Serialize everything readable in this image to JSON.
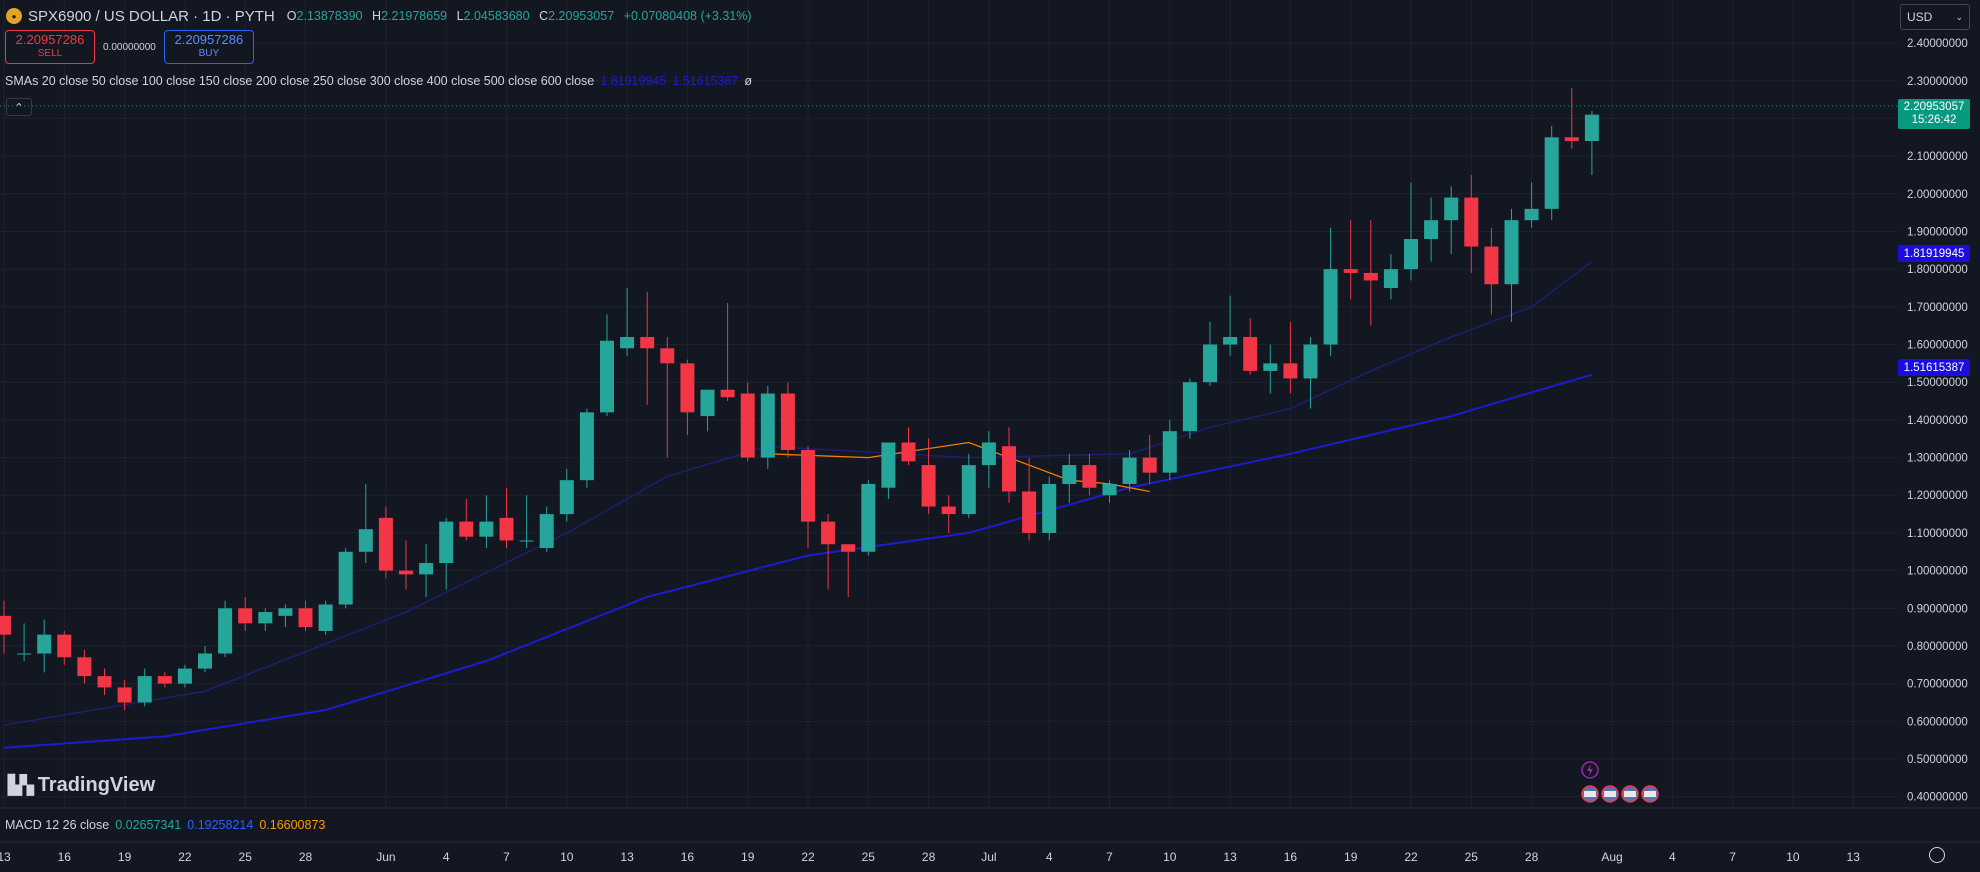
{
  "header": {
    "symbol_title": "SPX6900 / US DOLLAR · 1D · PYTH",
    "o_label": "O",
    "o_value": "2.13878390",
    "h_label": "H",
    "h_value": "2.21978659",
    "l_label": "L",
    "l_value": "2.04583680",
    "c_label": "C",
    "c_value": "2.20953057",
    "change": "+0.07080408",
    "change_pct": "(+3.31%)"
  },
  "trade": {
    "sell_price": "2.20957286",
    "sell_label": "SELL",
    "spread": "0.00000000",
    "buy_price": "2.20957286",
    "buy_label": "BUY"
  },
  "indicators": {
    "sma_label": "SMAs 20 close 50 close 100 close 150 close 200 close 250 close 300 close 400 close 500 close 600 close",
    "sma_value_1": "1.81919945",
    "sma_value_2": "1.51615387",
    "sma_suffix": "ø",
    "macd_label": "MACD 12 26 close",
    "macd_value": "0.02657341",
    "signal_value": "0.19258214",
    "hist_value": "0.16600873"
  },
  "currency": {
    "label": "USD",
    "icon": "chevron-down-icon"
  },
  "price_tags": {
    "current_price": "2.20953057",
    "countdown": "15:26:42",
    "sma1": "1.81919945",
    "sma2": "1.51615387"
  },
  "logo": {
    "text": "TradingView"
  },
  "colors": {
    "background": "#131722",
    "up": "#26a69a",
    "down": "#f23645",
    "sma_fast": "#1f1f7a",
    "sma_slow": "#1c1ccf",
    "sma_orange": "#f57c00",
    "grid": "#1e222d"
  },
  "chart_data": {
    "type": "candlestick",
    "y_ticks": [
      "2.40000000",
      "2.30000000",
      "2.20000000",
      "2.10000000",
      "2.00000000",
      "1.90000000",
      "1.80000000",
      "1.70000000",
      "1.60000000",
      "1.50000000",
      "1.40000000",
      "1.30000000",
      "1.20000000",
      "1.10000000",
      "1.00000000",
      "0.90000000",
      "0.80000000",
      "0.70000000",
      "0.60000000",
      "0.50000000",
      "0.40000000"
    ],
    "ylim": [
      0.37,
      2.44
    ],
    "x_ticks": [
      {
        "day": 0,
        "label": "13"
      },
      {
        "day": 3,
        "label": "16"
      },
      {
        "day": 6,
        "label": "19"
      },
      {
        "day": 9,
        "label": "22"
      },
      {
        "day": 12,
        "label": "25"
      },
      {
        "day": 15,
        "label": "28"
      },
      {
        "day": 19,
        "label": "Jun"
      },
      {
        "day": 22,
        "label": "4"
      },
      {
        "day": 25,
        "label": "7"
      },
      {
        "day": 28,
        "label": "10"
      },
      {
        "day": 31,
        "label": "13"
      },
      {
        "day": 34,
        "label": "16"
      },
      {
        "day": 37,
        "label": "19"
      },
      {
        "day": 40,
        "label": "22"
      },
      {
        "day": 43,
        "label": "25"
      },
      {
        "day": 46,
        "label": "28"
      },
      {
        "day": 49,
        "label": "Jul"
      },
      {
        "day": 52,
        "label": "4"
      },
      {
        "day": 55,
        "label": "7"
      },
      {
        "day": 58,
        "label": "10"
      },
      {
        "day": 61,
        "label": "13"
      },
      {
        "day": 64,
        "label": "16"
      },
      {
        "day": 67,
        "label": "19"
      },
      {
        "day": 70,
        "label": "22"
      },
      {
        "day": 73,
        "label": "25"
      },
      {
        "day": 76,
        "label": "28"
      },
      {
        "day": 80,
        "label": "Aug"
      },
      {
        "day": 83,
        "label": "4"
      },
      {
        "day": 86,
        "label": "7"
      },
      {
        "day": 89,
        "label": "10"
      },
      {
        "day": 92,
        "label": "13"
      }
    ],
    "candles": [
      [
        0.88,
        0.92,
        0.78,
        0.83
      ],
      [
        0.78,
        0.86,
        0.76,
        0.78
      ],
      [
        0.78,
        0.87,
        0.73,
        0.83
      ],
      [
        0.83,
        0.84,
        0.75,
        0.77
      ],
      [
        0.77,
        0.79,
        0.7,
        0.72
      ],
      [
        0.72,
        0.74,
        0.67,
        0.69
      ],
      [
        0.69,
        0.71,
        0.63,
        0.65
      ],
      [
        0.65,
        0.74,
        0.64,
        0.72
      ],
      [
        0.72,
        0.73,
        0.69,
        0.7
      ],
      [
        0.7,
        0.75,
        0.69,
        0.74
      ],
      [
        0.74,
        0.8,
        0.73,
        0.78
      ],
      [
        0.78,
        0.92,
        0.77,
        0.9
      ],
      [
        0.9,
        0.93,
        0.84,
        0.86
      ],
      [
        0.86,
        0.9,
        0.84,
        0.89
      ],
      [
        0.88,
        0.91,
        0.85,
        0.9
      ],
      [
        0.9,
        0.92,
        0.84,
        0.85
      ],
      [
        0.84,
        0.92,
        0.83,
        0.91
      ],
      [
        0.91,
        1.06,
        0.9,
        1.05
      ],
      [
        1.05,
        1.23,
        1.02,
        1.11
      ],
      [
        1.14,
        1.17,
        0.98,
        1.0
      ],
      [
        1.0,
        1.08,
        0.95,
        0.99
      ],
      [
        0.99,
        1.07,
        0.93,
        1.02
      ],
      [
        1.02,
        1.14,
        0.95,
        1.13
      ],
      [
        1.13,
        1.19,
        1.08,
        1.09
      ],
      [
        1.09,
        1.2,
        1.06,
        1.13
      ],
      [
        1.14,
        1.22,
        1.06,
        1.08
      ],
      [
        1.08,
        1.2,
        1.06,
        1.08
      ],
      [
        1.06,
        1.17,
        1.05,
        1.15
      ],
      [
        1.15,
        1.27,
        1.13,
        1.24
      ],
      [
        1.24,
        1.43,
        1.22,
        1.42
      ],
      [
        1.42,
        1.68,
        1.41,
        1.61
      ],
      [
        1.59,
        1.75,
        1.57,
        1.62
      ],
      [
        1.62,
        1.74,
        1.44,
        1.59
      ],
      [
        1.59,
        1.62,
        1.3,
        1.55
      ],
      [
        1.55,
        1.56,
        1.36,
        1.42
      ],
      [
        1.41,
        1.48,
        1.37,
        1.48
      ],
      [
        1.48,
        1.71,
        1.45,
        1.46
      ],
      [
        1.47,
        1.5,
        1.29,
        1.3
      ],
      [
        1.3,
        1.49,
        1.27,
        1.47
      ],
      [
        1.47,
        1.5,
        1.3,
        1.32
      ],
      [
        1.32,
        1.33,
        1.06,
        1.13
      ],
      [
        1.13,
        1.15,
        0.95,
        1.07
      ],
      [
        1.07,
        1.07,
        0.93,
        1.05
      ],
      [
        1.05,
        1.24,
        1.04,
        1.23
      ],
      [
        1.22,
        1.34,
        1.19,
        1.34
      ],
      [
        1.34,
        1.38,
        1.28,
        1.29
      ],
      [
        1.28,
        1.35,
        1.15,
        1.17
      ],
      [
        1.17,
        1.2,
        1.1,
        1.15
      ],
      [
        1.15,
        1.31,
        1.14,
        1.28
      ],
      [
        1.28,
        1.37,
        1.22,
        1.34
      ],
      [
        1.33,
        1.38,
        1.18,
        1.21
      ],
      [
        1.21,
        1.3,
        1.08,
        1.1
      ],
      [
        1.1,
        1.25,
        1.08,
        1.23
      ],
      [
        1.23,
        1.31,
        1.18,
        1.28
      ],
      [
        1.28,
        1.31,
        1.2,
        1.22
      ],
      [
        1.2,
        1.24,
        1.18,
        1.23
      ],
      [
        1.23,
        1.32,
        1.21,
        1.3
      ],
      [
        1.3,
        1.36,
        1.23,
        1.26
      ],
      [
        1.26,
        1.4,
        1.24,
        1.37
      ],
      [
        1.37,
        1.51,
        1.35,
        1.5
      ],
      [
        1.5,
        1.66,
        1.49,
        1.6
      ],
      [
        1.6,
        1.73,
        1.57,
        1.62
      ],
      [
        1.62,
        1.67,
        1.52,
        1.53
      ],
      [
        1.53,
        1.6,
        1.47,
        1.55
      ],
      [
        1.55,
        1.66,
        1.47,
        1.51
      ],
      [
        1.51,
        1.62,
        1.43,
        1.6
      ],
      [
        1.6,
        1.91,
        1.57,
        1.8
      ],
      [
        1.8,
        1.93,
        1.72,
        1.79
      ],
      [
        1.79,
        1.93,
        1.65,
        1.77
      ],
      [
        1.75,
        1.84,
        1.72,
        1.8
      ],
      [
        1.8,
        2.03,
        1.77,
        1.88
      ],
      [
        1.88,
        1.99,
        1.82,
        1.93
      ],
      [
        1.93,
        2.02,
        1.84,
        1.99
      ],
      [
        1.99,
        2.05,
        1.79,
        1.86
      ],
      [
        1.86,
        1.91,
        1.68,
        1.76
      ],
      [
        1.76,
        1.96,
        1.66,
        1.93
      ],
      [
        1.93,
        2.03,
        1.91,
        1.96
      ],
      [
        1.96,
        2.18,
        1.93,
        2.15
      ],
      [
        2.15,
        2.28,
        2.12,
        2.14
      ],
      [
        2.14,
        2.22,
        2.05,
        2.21
      ]
    ],
    "series": [
      {
        "name": "SMA",
        "color": "#1f1f7a",
        "points": [
          [
            0,
            0.59
          ],
          [
            10,
            0.68
          ],
          [
            20,
            0.89
          ],
          [
            28,
            1.1
          ],
          [
            33,
            1.25
          ],
          [
            38,
            1.33
          ],
          [
            48,
            1.3
          ],
          [
            56,
            1.31
          ],
          [
            60,
            1.38
          ],
          [
            64,
            1.43
          ],
          [
            68,
            1.53
          ],
          [
            72,
            1.62
          ],
          [
            76,
            1.7
          ],
          [
            79,
            1.82
          ]
        ]
      },
      {
        "name": "SMA",
        "color": "#1c1ccf",
        "points": [
          [
            0,
            0.53
          ],
          [
            8,
            0.56
          ],
          [
            16,
            0.63
          ],
          [
            24,
            0.76
          ],
          [
            32,
            0.93
          ],
          [
            40,
            1.04
          ],
          [
            48,
            1.1
          ],
          [
            56,
            1.22
          ],
          [
            64,
            1.31
          ],
          [
            72,
            1.41
          ],
          [
            79,
            1.52
          ]
        ]
      },
      {
        "name": "SMA",
        "color": "#f57c00",
        "points": [
          [
            38,
            1.31
          ],
          [
            43,
            1.3
          ],
          [
            48,
            1.34
          ],
          [
            50,
            1.3
          ],
          [
            53,
            1.24
          ],
          [
            55,
            1.23
          ],
          [
            57,
            1.21
          ]
        ]
      }
    ],
    "event_icons": [
      "lightning-icon",
      "us-flag-icon",
      "us-flag-icon",
      "us-flag-icon",
      "us-flag-icon"
    ]
  }
}
